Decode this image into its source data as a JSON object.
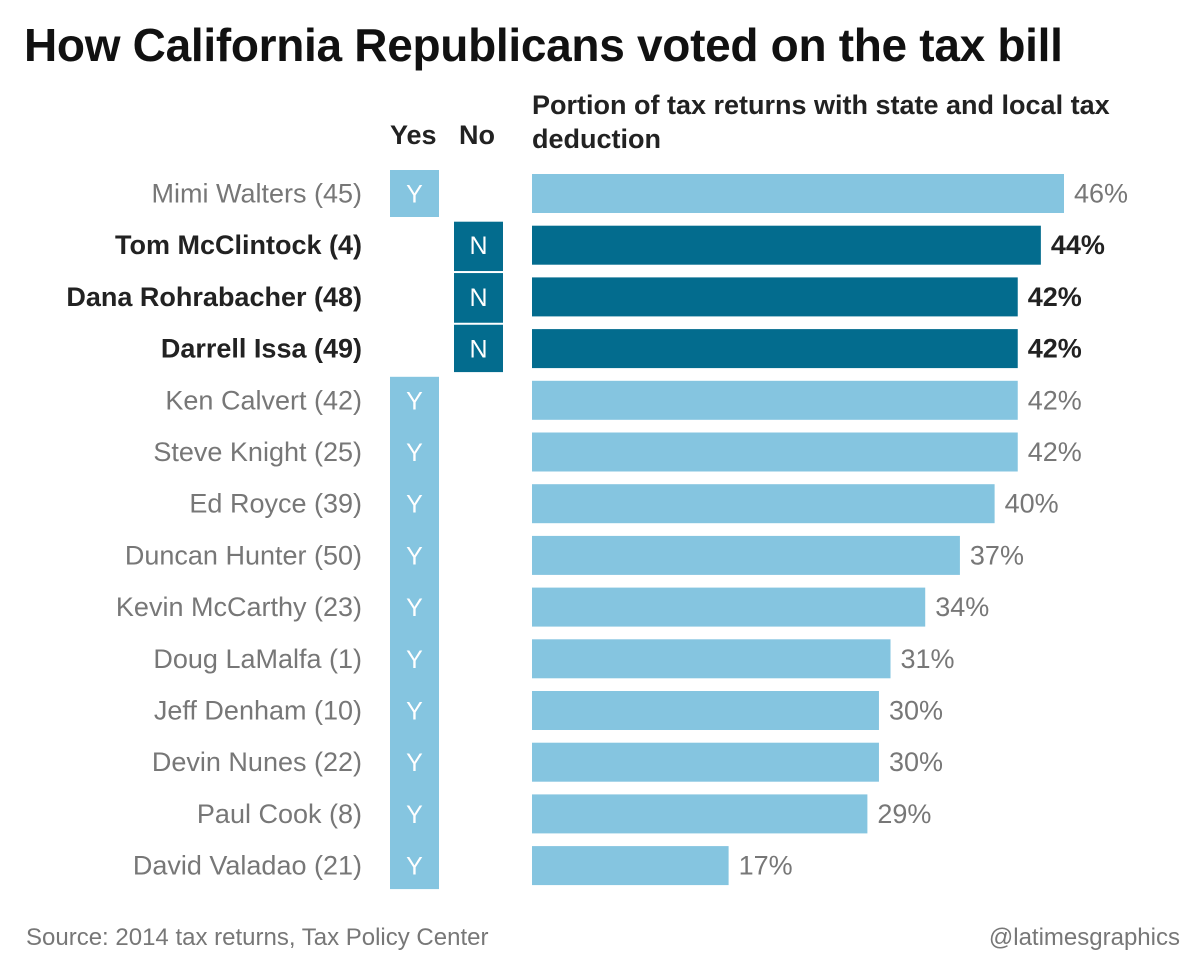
{
  "title": "How California Republicans voted on the tax bill",
  "headers": {
    "yes": "Yes",
    "no": "No"
  },
  "footer": {
    "source": "Source: 2014 tax returns, Tax Policy Center",
    "credit": "@latimesgraphics"
  },
  "colors": {
    "yes_light": "#85c5e0",
    "no_dark": "#036c8e",
    "label_gray": "#777777",
    "label_dark": "#222222"
  },
  "chart_data": {
    "type": "bar",
    "orientation": "horizontal",
    "title": "Portion of tax returns with state and local tax deduction",
    "categories": [
      "Mimi Walters (45)",
      "Tom McClintock (4)",
      "Dana Rohrabacher (48)",
      "Darrell Issa (49)",
      "Ken Calvert (42)",
      "Steve Knight (25)",
      "Ed Royce (39)",
      "Duncan Hunter (50)",
      "Kevin McCarthy (23)",
      "Doug LaMalfa (1)",
      "Jeff Denham (10)",
      "Devin Nunes (22)",
      "Paul Cook (8)",
      "David Valadao (21)"
    ],
    "values": [
      46,
      44,
      42,
      42,
      42,
      42,
      40,
      37,
      34,
      31,
      30,
      30,
      29,
      17
    ],
    "value_labels": [
      "46%",
      "44%",
      "42%",
      "42%",
      "42%",
      "42%",
      "40%",
      "37%",
      "34%",
      "31%",
      "30%",
      "30%",
      "29%",
      "17%"
    ],
    "votes": [
      "Y",
      "N",
      "N",
      "N",
      "Y",
      "Y",
      "Y",
      "Y",
      "Y",
      "Y",
      "Y",
      "Y",
      "Y",
      "Y"
    ],
    "xlim": [
      0,
      46
    ],
    "unit": "%",
    "grid": false,
    "legend": "none"
  }
}
